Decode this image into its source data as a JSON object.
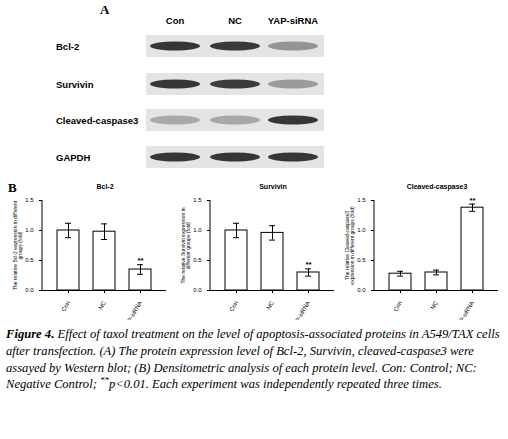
{
  "figure_a": {
    "panel_label": "A",
    "lanes": [
      "Con",
      "NC",
      "YAP-siRNA"
    ],
    "proteins": [
      "Bcl-2",
      "Survivin",
      "Cleaved-caspase3",
      "GAPDH"
    ]
  },
  "panel_b_label": "B",
  "chart_data": [
    {
      "type": "bar",
      "title": "Bcl-2",
      "y_label": "The relative Bcl-2 expression in different groups (fold)",
      "categories": [
        "Con",
        "NC",
        "YAP-siRNA"
      ],
      "values": [
        1.0,
        0.98,
        0.35
      ],
      "errors": [
        0.12,
        0.13,
        0.08
      ],
      "color": "#ffffff",
      "ylim": [
        0,
        1.5
      ],
      "yticks": [
        {
          "value": 0,
          "label": "0.0"
        },
        {
          "value": 0.5,
          "label": "0.5"
        },
        {
          "value": 1,
          "label": "1.0"
        },
        {
          "value": 1.5,
          "label": "1.5"
        }
      ],
      "annotations": [
        {
          "category": "YAP-siRNA",
          "text": "**"
        }
      ]
    },
    {
      "type": "bar",
      "title": "Survivin",
      "y_label": "The relative Survivin expression in different groups (fold)",
      "categories": [
        "Con",
        "NC",
        "YAP-siRNA"
      ],
      "values": [
        1.0,
        0.96,
        0.3
      ],
      "errors": [
        0.12,
        0.12,
        0.06
      ],
      "color": "#ffffff",
      "ylim": [
        0,
        1.5
      ],
      "yticks": [
        {
          "value": 0,
          "label": "0.0"
        },
        {
          "value": 0.5,
          "label": "0.5"
        },
        {
          "value": 1,
          "label": "1.0"
        },
        {
          "value": 1.5,
          "label": "1.5"
        }
      ],
      "annotations": [
        {
          "category": "YAP-siRNA",
          "text": "**"
        }
      ]
    },
    {
      "type": "bar",
      "title": "Cleaved-caspase3",
      "y_label": "The relative Cleaved-caspase3 expression in different groups (fold)",
      "categories": [
        "Con",
        "NC",
        "YAP-siRNA"
      ],
      "values": [
        0.28,
        0.3,
        1.38
      ],
      "errors": [
        0.04,
        0.04,
        0.06
      ],
      "color": "#ffffff",
      "ylim": [
        0,
        1.5
      ],
      "yticks": [
        {
          "value": 0,
          "label": "0.0"
        },
        {
          "value": 0.5,
          "label": "0.5"
        },
        {
          "value": 1,
          "label": "1.0"
        },
        {
          "value": 1.5,
          "label": "1.5"
        }
      ],
      "annotations": [
        {
          "category": "YAP-siRNA",
          "text": "**"
        }
      ]
    }
  ],
  "caption": {
    "segments": [
      {
        "text": "Figure 4.",
        "bold": true
      },
      {
        "text": " Effect of taxol treatment on the level of apoptosis-associated proteins in A549/TAX cells after transfection. (A) The protein expression level of Bcl-2, Survivin, cleaved-caspase3 were assayed by Western blot; (B) Densitometric analysis of each protein level. Con: Control; NC: Negative Control; "
      },
      {
        "text": "**",
        "sup": true
      },
      {
        "text": "p<0.01. Each experiment was independently repeated three times."
      }
    ]
  }
}
